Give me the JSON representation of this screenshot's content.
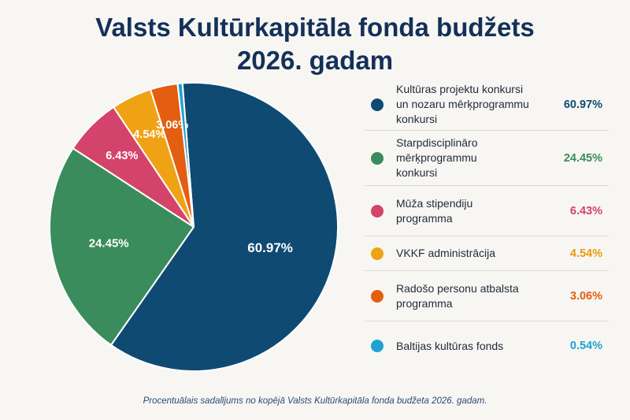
{
  "title_line1": "Valsts Kultūrkapitāla fonda budžets",
  "title_line2": "2026. gadam",
  "footer": "Procentuālais sadalījums no kopējā Valsts Kultūrkapitāla fonda budžeta 2026. gadam.",
  "chart_data": {
    "type": "pie",
    "title": "Valsts Kultūrkapitāla fonda budžets 2026. gadam",
    "legend_position": "right",
    "slices": [
      {
        "label": "Kultūras projektu konkursi un nozaru mērķprogrammu konkursi",
        "value": 60.97,
        "display": "60.97%",
        "color": "#0f4a73",
        "show_label": true
      },
      {
        "label": "Starpdisciplināro mērķprogrammu konkursi",
        "value": 24.45,
        "display": "24.45%",
        "color": "#3a8c5c",
        "show_label": true
      },
      {
        "label": "Mūža stipendiju programma",
        "value": 6.43,
        "display": "6.43%",
        "color": "#d4436a",
        "show_label": true
      },
      {
        "label": "VKKF administrācija",
        "value": 4.54,
        "display": "4.54%",
        "color": "#f0a215",
        "show_label": true
      },
      {
        "label": "Radošo personu atbalsta programma",
        "value": 3.06,
        "display": "3.06%",
        "color": "#e35e10",
        "show_label": true
      },
      {
        "label": "Baltijas kultūras fonds",
        "value": 0.54,
        "display": "0.54%",
        "color": "#1ea3d4",
        "show_label": false
      }
    ]
  },
  "legend": {
    "items": [
      {
        "lines": [
          "Kultūras projektu konkursi",
          "un nozaru mērķprogrammu",
          "konkursi"
        ],
        "value": "60.97%",
        "color": "#0f4a73"
      },
      {
        "lines": [
          "Starpdisciplināro",
          "mērķprogrammu",
          "konkursi"
        ],
        "value": "24.45%",
        "color": "#3a8c5c"
      },
      {
        "lines": [
          "Mūža stipendiju",
          "programma"
        ],
        "value": "6.43%",
        "color": "#d4436a"
      },
      {
        "lines": [
          "VKKF administrācija"
        ],
        "value": "4.54%",
        "color": "#f0a215"
      },
      {
        "lines": [
          "Radošo personu atbalsta",
          "programma"
        ],
        "value": "3.06%",
        "color": "#e35e10"
      },
      {
        "lines": [
          "Baltijas kultūras fonds"
        ],
        "value": "0.54%",
        "color": "#1ea3d4"
      }
    ]
  }
}
